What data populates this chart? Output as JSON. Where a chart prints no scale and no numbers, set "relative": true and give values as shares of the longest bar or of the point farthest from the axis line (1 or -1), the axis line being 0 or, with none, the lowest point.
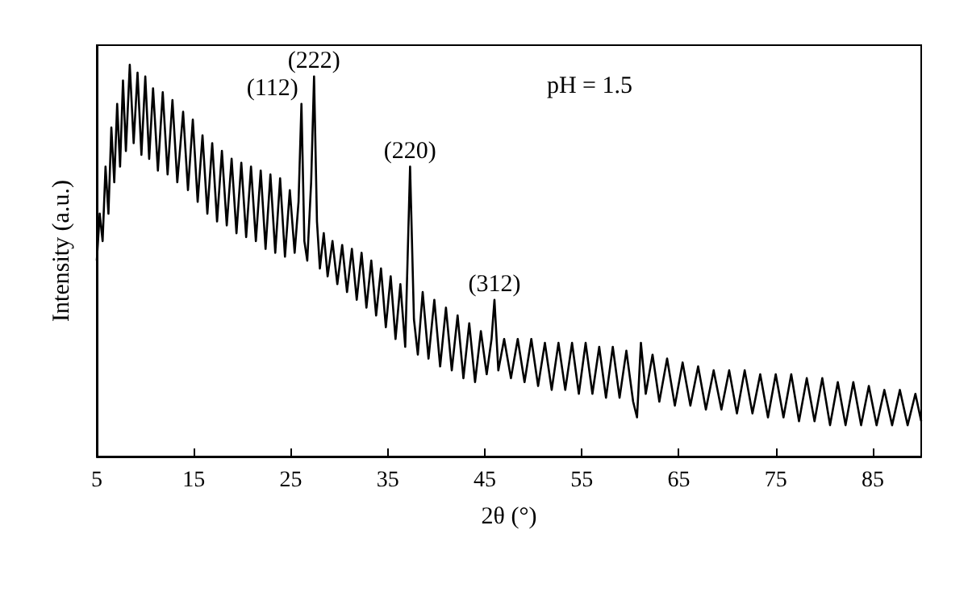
{
  "chart_data": {
    "type": "line",
    "relative": true,
    "xlabel": "2θ (°)",
    "ylabel": "Intensity (a.u.)",
    "xlim": [
      5,
      90
    ],
    "xticks": [
      5,
      15,
      25,
      35,
      45,
      55,
      65,
      75,
      85
    ],
    "grid": false,
    "marker": "none",
    "line_style": "solid",
    "annotations": [
      {
        "text": "(112)",
        "x": 26.1,
        "y": 0.9
      },
      {
        "text": "(222)",
        "x": 27.4,
        "y": 0.97
      },
      {
        "text": "(220)",
        "x": 37.3,
        "y": 0.74
      },
      {
        "text": "(312)",
        "x": 46.0,
        "y": 0.4
      },
      "pH = 1.5"
    ],
    "series": [
      {
        "color": "#000000",
        "x": [
          5.0,
          5.3,
          5.6,
          5.9,
          6.2,
          6.5,
          6.8,
          7.1,
          7.4,
          7.7,
          8.0,
          8.4,
          8.8,
          9.2,
          9.6,
          10.0,
          10.4,
          10.8,
          11.3,
          11.8,
          12.3,
          12.8,
          13.3,
          13.9,
          14.4,
          14.9,
          15.4,
          15.9,
          16.4,
          16.9,
          17.4,
          17.9,
          18.4,
          18.9,
          19.4,
          19.9,
          20.4,
          20.9,
          21.4,
          21.9,
          22.4,
          22.9,
          23.4,
          23.9,
          24.4,
          24.9,
          25.4,
          25.8,
          26.1,
          26.4,
          26.7,
          27.1,
          27.4,
          27.7,
          28.0,
          28.4,
          28.8,
          29.3,
          29.8,
          30.3,
          30.8,
          31.3,
          31.8,
          32.3,
          32.8,
          33.3,
          33.8,
          34.3,
          34.8,
          35.3,
          35.8,
          36.3,
          36.8,
          37.3,
          37.7,
          38.1,
          38.6,
          39.2,
          39.8,
          40.4,
          41.0,
          41.6,
          42.2,
          42.8,
          43.4,
          44.0,
          44.6,
          45.2,
          45.7,
          46.0,
          46.4,
          47.0,
          47.7,
          48.4,
          49.1,
          49.8,
          50.5,
          51.2,
          51.9,
          52.6,
          53.3,
          54.0,
          54.7,
          55.4,
          56.1,
          56.8,
          57.5,
          58.2,
          58.9,
          59.6,
          60.3,
          60.7,
          61.1,
          61.6,
          62.3,
          63.0,
          63.8,
          64.6,
          65.4,
          66.2,
          67.0,
          67.8,
          68.6,
          69.4,
          70.2,
          71.0,
          71.8,
          72.6,
          73.4,
          74.2,
          75.0,
          75.8,
          76.6,
          77.4,
          78.2,
          79.0,
          79.8,
          80.6,
          81.4,
          82.2,
          83.0,
          83.8,
          84.6,
          85.4,
          86.2,
          87.0,
          87.8,
          88.6,
          89.4,
          90.0
        ],
        "values": [
          0.5,
          0.62,
          0.55,
          0.74,
          0.62,
          0.84,
          0.7,
          0.9,
          0.74,
          0.96,
          0.78,
          1.0,
          0.8,
          0.98,
          0.77,
          0.97,
          0.76,
          0.94,
          0.73,
          0.93,
          0.72,
          0.91,
          0.7,
          0.88,
          0.68,
          0.86,
          0.65,
          0.82,
          0.62,
          0.8,
          0.6,
          0.78,
          0.59,
          0.76,
          0.57,
          0.75,
          0.56,
          0.74,
          0.55,
          0.73,
          0.53,
          0.72,
          0.52,
          0.71,
          0.51,
          0.68,
          0.52,
          0.65,
          0.9,
          0.55,
          0.5,
          0.7,
          0.97,
          0.6,
          0.48,
          0.57,
          0.46,
          0.55,
          0.44,
          0.54,
          0.42,
          0.53,
          0.4,
          0.52,
          0.38,
          0.5,
          0.36,
          0.48,
          0.33,
          0.46,
          0.3,
          0.44,
          0.28,
          0.74,
          0.35,
          0.26,
          0.42,
          0.25,
          0.4,
          0.23,
          0.38,
          0.22,
          0.36,
          0.2,
          0.34,
          0.19,
          0.32,
          0.21,
          0.3,
          0.4,
          0.22,
          0.3,
          0.2,
          0.3,
          0.19,
          0.3,
          0.18,
          0.29,
          0.17,
          0.29,
          0.17,
          0.29,
          0.16,
          0.29,
          0.16,
          0.28,
          0.15,
          0.28,
          0.15,
          0.27,
          0.14,
          0.1,
          0.29,
          0.16,
          0.26,
          0.14,
          0.25,
          0.13,
          0.24,
          0.13,
          0.23,
          0.12,
          0.22,
          0.12,
          0.22,
          0.11,
          0.22,
          0.11,
          0.21,
          0.1,
          0.21,
          0.1,
          0.21,
          0.09,
          0.2,
          0.09,
          0.2,
          0.08,
          0.19,
          0.08,
          0.19,
          0.08,
          0.18,
          0.08,
          0.17,
          0.08,
          0.17,
          0.08,
          0.16,
          0.09
        ]
      }
    ]
  }
}
